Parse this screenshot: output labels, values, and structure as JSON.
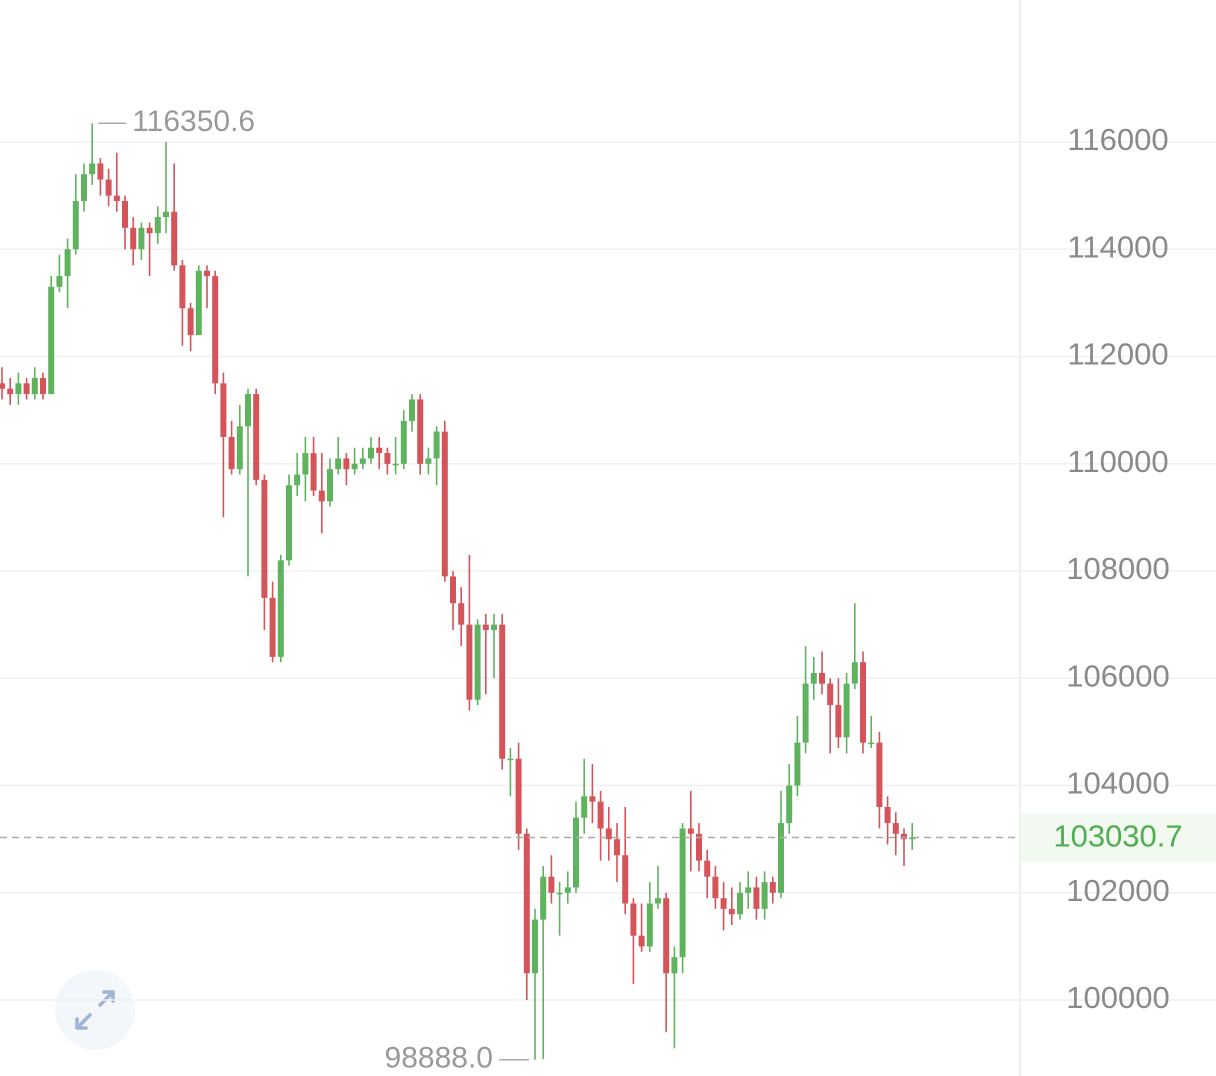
{
  "chart_data": {
    "type": "candlestick",
    "ylim": [
      98584,
      118648
    ],
    "yticks": [
      100000,
      102000,
      104000,
      106000,
      108000,
      110000,
      112000,
      114000,
      116000
    ],
    "grid": true,
    "up_color": "#5fb35f",
    "down_color": "#d4545a",
    "annotations": [
      {
        "label": "116350.6",
        "value": 116350.6
      },
      {
        "label": "98888.0",
        "value": 98888.0
      }
    ],
    "last_price": {
      "label": "103030.7",
      "value": 103030.7
    },
    "ohlc": [
      [
        111500,
        111800,
        111200,
        111400
      ],
      [
        111400,
        111600,
        111100,
        111300
      ],
      [
        111300,
        111700,
        111100,
        111500
      ],
      [
        111500,
        111600,
        111200,
        111300
      ],
      [
        111300,
        111800,
        111200,
        111600
      ],
      [
        111600,
        111700,
        111200,
        111300
      ],
      [
        111300,
        113500,
        111300,
        113300
      ],
      [
        113300,
        113900,
        113200,
        113500
      ],
      [
        113500,
        114200,
        112900,
        114000
      ],
      [
        114000,
        115400,
        113900,
        114900
      ],
      [
        114900,
        115600,
        114700,
        115400
      ],
      [
        115400,
        116350.6,
        115200,
        115600
      ],
      [
        115600,
        115700,
        115000,
        115300
      ],
      [
        115300,
        115500,
        114800,
        115000
      ],
      [
        115000,
        115800,
        114700,
        114900
      ],
      [
        114900,
        115000,
        114000,
        114400
      ],
      [
        114400,
        114600,
        113700,
        114000
      ],
      [
        114000,
        114500,
        113800,
        114400
      ],
      [
        114400,
        114500,
        113500,
        114300
      ],
      [
        114300,
        114800,
        114100,
        114600
      ],
      [
        114600,
        116000,
        114300,
        114700
      ],
      [
        114700,
        115600,
        113600,
        113700
      ],
      [
        113700,
        113800,
        112200,
        112900
      ],
      [
        112900,
        113000,
        112100,
        112400
      ],
      [
        112400,
        113700,
        112400,
        113600
      ],
      [
        113600,
        113700,
        112900,
        113500
      ],
      [
        113500,
        113600,
        111300,
        111500
      ],
      [
        111500,
        111700,
        109000,
        110500
      ],
      [
        110500,
        110800,
        109800,
        109900
      ],
      [
        109900,
        111100,
        109800,
        110700
      ],
      [
        110700,
        111400,
        107900,
        111300
      ],
      [
        111300,
        111400,
        109600,
        109700
      ],
      [
        109700,
        109800,
        106900,
        107500
      ],
      [
        107500,
        107800,
        106300,
        106400
      ],
      [
        106400,
        108300,
        106300,
        108200
      ],
      [
        108200,
        109800,
        108100,
        109600
      ],
      [
        109600,
        110200,
        109400,
        109800
      ],
      [
        109800,
        110500,
        109300,
        110200
      ],
      [
        110200,
        110500,
        109400,
        109500
      ],
      [
        109500,
        110200,
        108700,
        109300
      ],
      [
        109300,
        110100,
        109200,
        109900
      ],
      [
        109900,
        110500,
        109800,
        110100
      ],
      [
        110100,
        110200,
        109600,
        109900
      ],
      [
        109900,
        110300,
        109800,
        110000
      ],
      [
        110000,
        110300,
        109900,
        110100
      ],
      [
        110100,
        110500,
        110000,
        110300
      ],
      [
        110300,
        110500,
        109900,
        110200
      ],
      [
        110200,
        110300,
        109800,
        110000
      ],
      [
        110000,
        110500,
        109800,
        110000
      ],
      [
        110000,
        111000,
        109900,
        110800
      ],
      [
        110800,
        111300,
        110600,
        111200
      ],
      [
        111200,
        111300,
        109800,
        110000
      ],
      [
        110000,
        110300,
        109800,
        110100
      ],
      [
        110100,
        110700,
        109600,
        110600
      ],
      [
        110600,
        110800,
        107800,
        107900
      ],
      [
        107900,
        108000,
        106900,
        107400
      ],
      [
        107400,
        107700,
        106600,
        107000
      ],
      [
        107000,
        108300,
        105400,
        105600
      ],
      [
        105600,
        107100,
        105500,
        107000
      ],
      [
        107000,
        107200,
        105700,
        106900
      ],
      [
        106900,
        107200,
        106000,
        107000
      ],
      [
        107000,
        107200,
        104300,
        104500
      ],
      [
        104500,
        104700,
        103800,
        104500
      ],
      [
        104500,
        104800,
        102800,
        103100
      ],
      [
        103100,
        103200,
        100000,
        100500
      ],
      [
        100500,
        101700,
        98888.0,
        101500
      ],
      [
        101500,
        102500,
        98900,
        102300
      ],
      [
        102300,
        102700,
        101800,
        102000
      ],
      [
        102000,
        102200,
        101200,
        102000
      ],
      [
        102000,
        102400,
        101800,
        102100
      ],
      [
        102100,
        103700,
        102000,
        103400
      ],
      [
        103400,
        104500,
        103100,
        103800
      ],
      [
        103800,
        104400,
        103300,
        103700
      ],
      [
        103700,
        103900,
        102600,
        103200
      ],
      [
        103200,
        103600,
        102600,
        103000
      ],
      [
        103000,
        103300,
        102200,
        102700
      ],
      [
        102700,
        103600,
        101600,
        101800
      ],
      [
        101800,
        101900,
        100300,
        101200
      ],
      [
        101200,
        101800,
        100900,
        101000
      ],
      [
        101000,
        102200,
        100900,
        101800
      ],
      [
        101800,
        102500,
        101700,
        101900
      ],
      [
        101900,
        102000,
        99400,
        100500
      ],
      [
        100500,
        101000,
        99100,
        100800
      ],
      [
        100800,
        103300,
        100500,
        103200
      ],
      [
        103200,
        103900,
        102400,
        103100
      ],
      [
        103100,
        103300,
        102400,
        102600
      ],
      [
        102600,
        102800,
        101900,
        102300
      ],
      [
        102300,
        102500,
        101700,
        101900
      ],
      [
        101900,
        102200,
        101300,
        101700
      ],
      [
        101700,
        102100,
        101400,
        101600
      ],
      [
        101600,
        102200,
        101500,
        102000
      ],
      [
        102000,
        102400,
        101700,
        102100
      ],
      [
        102100,
        102300,
        101500,
        101700
      ],
      [
        101700,
        102400,
        101500,
        102200
      ],
      [
        102200,
        102300,
        101800,
        102000
      ],
      [
        102000,
        103900,
        101900,
        103300
      ],
      [
        103300,
        104400,
        103100,
        104000
      ],
      [
        104000,
        105300,
        103800,
        104800
      ],
      [
        104800,
        106600,
        104600,
        105900
      ],
      [
        105900,
        106400,
        105600,
        106100
      ],
      [
        106100,
        106500,
        105700,
        105900
      ],
      [
        105900,
        106000,
        104600,
        105500
      ],
      [
        105500,
        106000,
        104700,
        104900
      ],
      [
        104900,
        106100,
        104600,
        105900
      ],
      [
        105900,
        107400,
        105800,
        106300
      ],
      [
        106300,
        106500,
        104600,
        104800
      ],
      [
        104800,
        105300,
        104700,
        104800
      ],
      [
        104800,
        105000,
        103200,
        103600
      ],
      [
        103600,
        103800,
        102900,
        103300
      ],
      [
        103300,
        103500,
        102700,
        103100
      ],
      [
        103100,
        103200,
        102500,
        103000
      ],
      [
        103000,
        103300,
        102800,
        103030.7
      ]
    ]
  }
}
